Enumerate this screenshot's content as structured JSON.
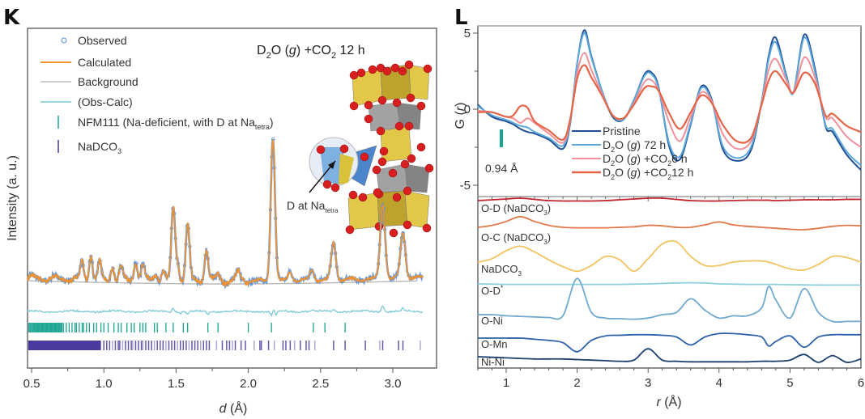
{
  "panels": {
    "k": {
      "letter": "K"
    },
    "l": {
      "letter": "L"
    }
  },
  "chart_data": [
    {
      "id": "K",
      "type": "line",
      "title": "D2O (g) +CO2 12 h",
      "title_parts": {
        "a": "D",
        "sub1": "2",
        "b": "O (",
        "g": "g",
        "c": ") +CO",
        "sub2": "2",
        "d": " 12 h"
      },
      "xlabel": "d (Å)",
      "xlabel_parts": {
        "var": "d",
        "unit": " (Å)"
      },
      "ylabel": "Intensity (a. u.)",
      "xlim": [
        0.47,
        3.22
      ],
      "xticks": [
        "0.5",
        "1.0",
        "1.5",
        "2.0",
        "2.5",
        "3.0"
      ],
      "xtick_values": [
        0.5,
        1.0,
        1.5,
        2.0,
        2.5,
        3.0
      ],
      "grid": false,
      "legend": {
        "placement": "top-left",
        "entries": [
          {
            "label": "Observed",
            "marker": "circle",
            "color": "#5b8fd6"
          },
          {
            "label": "Calculated",
            "marker": "line",
            "color": "#f0922e"
          },
          {
            "label": "Background",
            "marker": "line",
            "color": "#b8b8b8"
          },
          {
            "label": "(Obs-Calc)",
            "marker": "line",
            "color": "#7cc9d6"
          },
          {
            "label": "NFM111 (Na-deficient, with D at Na",
            "sub": "tetra",
            "suffix": ")",
            "marker": "tick",
            "color": "#1aa391"
          },
          {
            "label": "NaDCO",
            "sub": "3",
            "suffix": "",
            "marker": "tick",
            "color": "#4b3a9c"
          }
        ]
      },
      "annotation": {
        "text": "D at Na",
        "sub": "tetra"
      },
      "peaks": [
        {
          "d": 0.85,
          "height": 0.12
        },
        {
          "d": 0.91,
          "height": 0.18
        },
        {
          "d": 0.97,
          "height": 0.12
        },
        {
          "d": 1.06,
          "height": 0.1
        },
        {
          "d": 1.12,
          "height": 0.09
        },
        {
          "d": 1.22,
          "height": 0.13
        },
        {
          "d": 1.27,
          "height": 0.11
        },
        {
          "d": 1.36,
          "height": 0.05
        },
        {
          "d": 1.41,
          "height": 0.07
        },
        {
          "d": 1.48,
          "height": 0.5
        },
        {
          "d": 1.51,
          "height": 0.12
        },
        {
          "d": 1.58,
          "height": 0.4
        },
        {
          "d": 1.71,
          "height": 0.22
        },
        {
          "d": 1.79,
          "height": 0.04
        },
        {
          "d": 1.93,
          "height": 0.06
        },
        {
          "d": 2.17,
          "height": 1.0
        },
        {
          "d": 2.29,
          "height": 0.06
        },
        {
          "d": 2.44,
          "height": 0.07
        },
        {
          "d": 2.59,
          "height": 0.26
        },
        {
          "d": 2.93,
          "height": 0.52
        },
        {
          "d": 3.07,
          "height": 0.32
        }
      ],
      "reflections": {
        "NFM111": [
          0.52,
          0.54,
          0.55,
          0.57,
          0.58,
          0.6,
          0.61,
          0.63,
          0.64,
          0.66,
          0.67,
          0.69,
          0.71,
          0.72,
          0.74,
          0.76,
          0.78,
          0.8,
          0.81,
          0.83,
          0.85,
          0.86,
          0.88,
          0.9,
          0.93,
          0.95,
          0.98,
          1.0,
          1.03,
          1.07,
          1.1,
          1.12,
          1.16,
          1.19,
          1.21,
          1.25,
          1.27,
          1.29,
          1.35,
          1.37,
          1.43,
          1.48,
          1.55,
          1.58,
          1.72,
          1.79,
          2.0,
          2.16,
          2.45,
          2.53,
          2.67
        ],
        "NaDCO3_dense_until": 0.98,
        "NaDCO3": [
          1.0,
          1.02,
          1.04,
          1.06,
          1.08,
          1.1,
          1.11,
          1.13,
          1.15,
          1.17,
          1.19,
          1.2,
          1.22,
          1.24,
          1.26,
          1.27,
          1.29,
          1.31,
          1.33,
          1.35,
          1.37,
          1.39,
          1.41,
          1.43,
          1.45,
          1.47,
          1.49,
          1.51,
          1.53,
          1.55,
          1.57,
          1.59,
          1.61,
          1.63,
          1.65,
          1.67,
          1.69,
          1.71,
          1.73,
          1.78,
          1.82,
          1.85,
          1.87,
          1.89,
          1.91,
          1.95,
          1.98,
          2.04,
          2.08,
          2.09,
          2.14,
          2.18,
          2.24,
          2.26,
          2.29,
          2.32,
          2.36,
          2.4,
          2.42,
          2.46,
          2.59,
          2.67,
          2.81,
          2.91,
          2.93,
          3.04,
          3.07,
          3.19
        ]
      },
      "series_colors": {
        "observed": "#5b8fd6",
        "calculated": "#f0922e",
        "background": "#b8b8b8",
        "difference": "#7cc9d6",
        "nfm111_ticks": "#1aa391",
        "nadco3_ticks": "#4b3a9c"
      }
    },
    {
      "id": "L-top",
      "type": "line",
      "xlabel": "r (Å)",
      "ylabel": "G (r)",
      "xlim": [
        0.6,
        6.0
      ],
      "ylim": [
        -5,
        5
      ],
      "yticks": [
        "5",
        "0",
        "-5"
      ],
      "ytick_values": [
        5,
        0,
        -5
      ],
      "grid": false,
      "legend": {
        "placement": "bottom-center"
      },
      "scale_bar": {
        "label": "0.94 Å",
        "color": "#1aa391"
      },
      "x": [
        0.6,
        0.8,
        1.0,
        1.1,
        1.2,
        1.3,
        1.4,
        1.6,
        1.8,
        1.9,
        2.0,
        2.1,
        2.2,
        2.35,
        2.5,
        2.65,
        2.8,
        2.95,
        3.05,
        3.15,
        3.3,
        3.45,
        3.6,
        3.75,
        3.9,
        4.05,
        4.25,
        4.45,
        4.6,
        4.7,
        4.8,
        4.95,
        5.05,
        5.2,
        5.35,
        5.5,
        5.6,
        5.8,
        6.0
      ],
      "series": [
        {
          "name": "Pristine",
          "label_parts": {
            "a": "Pristine"
          },
          "color": "#1f4e96",
          "values": [
            0.3,
            -0.5,
            -0.8,
            -1.0,
            -1.3,
            -1.5,
            -1.6,
            -2.0,
            -2.6,
            -1.0,
            3.0,
            5.2,
            3.5,
            1.2,
            -0.5,
            -0.7,
            0.6,
            2.3,
            2.4,
            1.4,
            -2.5,
            -3.3,
            -1.0,
            1.5,
            0.6,
            -2.6,
            -3.4,
            -2.7,
            0.5,
            3.5,
            4.7,
            2.2,
            1.1,
            4.9,
            2.7,
            -1.1,
            -1.5,
            -3.0,
            -4.0
          ]
        },
        {
          "name": "D2O (g) 72 h",
          "label_parts": {
            "a": "D",
            "sub": "2",
            "b": "O (",
            "g": "g",
            "c": ") 72 h"
          },
          "color": "#5ba8d8",
          "values": [
            0.2,
            -0.4,
            -0.7,
            -0.9,
            -1.1,
            -1.2,
            -1.5,
            -1.9,
            -2.4,
            -0.9,
            3.0,
            5.0,
            3.4,
            1.2,
            -0.4,
            -0.7,
            0.6,
            2.2,
            2.3,
            1.3,
            -2.3,
            -3.1,
            -0.9,
            1.4,
            0.5,
            -2.4,
            -3.2,
            -2.5,
            0.5,
            3.3,
            4.4,
            2.1,
            1.1,
            4.7,
            2.5,
            -1.0,
            -1.3,
            -2.8,
            -3.7
          ]
        },
        {
          "name": "D2O (g) +CO2 6 h",
          "label_parts": {
            "a": "D",
            "sub": "2",
            "b": "O (",
            "g": "g",
            "c": ") +CO",
            "sub2": "2",
            "d": "6 h"
          },
          "color": "#f0909a",
          "values": [
            -0.1,
            -0.2,
            -0.5,
            -0.6,
            -0.9,
            -0.6,
            -0.9,
            -1.6,
            -2.2,
            -0.8,
            2.4,
            3.7,
            2.6,
            1.0,
            -0.4,
            -0.6,
            0.4,
            1.8,
            1.9,
            1.2,
            -0.9,
            -2.1,
            -0.5,
            1.1,
            0.5,
            -1.6,
            -2.6,
            -2.1,
            0.4,
            2.6,
            3.3,
            1.9,
            1.1,
            3.4,
            2.1,
            -0.5,
            -0.6,
            -1.8,
            -2.5
          ]
        },
        {
          "name": "D2O (g) +CO2 12 h",
          "label_parts": {
            "a": "D",
            "sub": "2",
            "b": "O (",
            "g": "g",
            "c": ") +CO",
            "sub2": "2",
            "d": "12 h"
          },
          "color": "#e56548",
          "values": [
            -0.2,
            -0.2,
            -0.5,
            -0.4,
            0.2,
            0.1,
            -0.8,
            -1.4,
            -2.0,
            -0.7,
            2.0,
            2.9,
            2.1,
            0.9,
            -0.4,
            -0.6,
            0.3,
            1.4,
            1.5,
            1.2,
            -0.3,
            -1.3,
            -0.2,
            0.9,
            0.4,
            -1.0,
            -2.1,
            -1.9,
            0.3,
            1.9,
            2.5,
            1.6,
            1.1,
            2.4,
            1.7,
            -0.4,
            -0.3,
            -1.1,
            -1.5
          ]
        }
      ]
    },
    {
      "id": "L-bottom",
      "type": "line",
      "xlabel": "r (Å)",
      "xlabel_parts": {
        "var": "r",
        "unit": " (Å)"
      },
      "xlim": [
        0.6,
        6.0
      ],
      "xticks": [
        "1",
        "2",
        "3",
        "4",
        "5",
        "6"
      ],
      "xtick_values": [
        1,
        2,
        3,
        4,
        5,
        6
      ],
      "grid": false,
      "x": [
        0.6,
        0.8,
        1.0,
        1.2,
        1.4,
        1.6,
        1.8,
        2.0,
        2.2,
        2.4,
        2.6,
        2.8,
        3.0,
        3.2,
        3.4,
        3.6,
        3.8,
        4.0,
        4.2,
        4.4,
        4.6,
        4.7,
        4.8,
        5.0,
        5.2,
        5.4,
        5.6,
        5.8,
        6.0
      ],
      "series": [
        {
          "name": "O-D (NaDCO3)",
          "label_parts": {
            "a": "O-D (NaDCO",
            "sub": "3",
            "b": ")"
          },
          "color": "#c0262b",
          "values": [
            0.0,
            0.1,
            0.2,
            0.3,
            0.15,
            0.0,
            -0.05,
            -0.05,
            -0.05,
            0.0,
            0.1,
            0.2,
            0.3,
            0.3,
            0.15,
            0.0,
            -0.05,
            -0.05,
            0.0,
            0.05,
            0.05,
            0.05,
            0.0,
            0.05,
            0.1,
            0.1,
            0.1,
            0.15,
            0.15
          ]
        },
        {
          "name": "O-C (NaDCO3)",
          "label_parts": {
            "a": "O-C (NaDCO",
            "sub": "3",
            "b": ")"
          },
          "color": "#e0784a",
          "values": [
            0.0,
            0.2,
            0.6,
            1.1,
            0.6,
            0.2,
            0.0,
            -0.05,
            -0.05,
            -0.05,
            0.0,
            0.05,
            0.2,
            0.15,
            0.0,
            0.0,
            0.25,
            0.55,
            0.25,
            0.1,
            0.0,
            -0.05,
            -0.1,
            -0.2,
            -0.25,
            -0.1,
            0.1,
            0.2,
            0.15
          ]
        },
        {
          "name": "NaDCO3",
          "label_parts": {
            "a": "NaDCO",
            "sub": "3"
          },
          "color": "#f2c461",
          "values": [
            0.0,
            0.3,
            1.0,
            1.4,
            0.9,
            0.2,
            -0.4,
            -0.8,
            -0.3,
            0.5,
            0.2,
            -0.8,
            0.3,
            1.6,
            1.8,
            0.5,
            -0.3,
            -0.3,
            0.0,
            0.1,
            0.1,
            0.0,
            -0.2,
            -0.6,
            -0.7,
            -0.2,
            0.5,
            0.4,
            0.0
          ]
        },
        {
          "name": "O-D*",
          "label_parts": {
            "a": "O-D",
            "sup": "*"
          },
          "color": "#8cd0e0",
          "values": [
            0.0,
            -0.02,
            -0.05,
            -0.05,
            -0.05,
            -0.05,
            -0.05,
            -0.05,
            -0.05,
            -0.05,
            -0.05,
            -0.02,
            0.0,
            0.05,
            0.1,
            0.12,
            0.1,
            0.0,
            -0.02,
            -0.05,
            -0.05,
            -0.05,
            -0.05,
            -0.08,
            -0.1,
            -0.12,
            -0.12,
            -0.12,
            -0.12
          ]
        },
        {
          "name": "O-Ni",
          "label_parts": {
            "a": "O-Ni"
          },
          "color": "#6fa9cf",
          "values": [
            0.0,
            0.0,
            -0.1,
            -0.15,
            -0.2,
            -0.25,
            -0.1,
            3.2,
            0.2,
            -0.3,
            -0.35,
            -0.4,
            -0.3,
            0.0,
            0.2,
            1.4,
            0.4,
            -0.3,
            -0.1,
            -0.1,
            0.6,
            2.5,
            1.3,
            -0.3,
            2.3,
            0.2,
            -0.6,
            -0.6,
            -0.6
          ]
        },
        {
          "name": "O-Mn",
          "label_parts": {
            "a": "O-Mn"
          },
          "color": "#2e62a8",
          "values": [
            0.0,
            0.0,
            0.0,
            0.0,
            -0.1,
            -0.2,
            -0.4,
            -1.2,
            -0.2,
            0.2,
            0.25,
            0.3,
            0.3,
            0.25,
            0.1,
            -0.6,
            0.1,
            0.4,
            0.4,
            0.3,
            0.1,
            -0.7,
            -0.3,
            0.2,
            -0.8,
            0.1,
            0.3,
            0.3,
            0.3
          ]
        },
        {
          "name": "Ni-Ni",
          "label_parts": {
            "a": "Ni-Ni"
          },
          "color": "#1b3f6e",
          "values": [
            0.0,
            -0.05,
            -0.1,
            -0.15,
            -0.2,
            -0.2,
            -0.2,
            -0.25,
            -0.3,
            -0.35,
            -0.4,
            -0.3,
            0.7,
            -0.3,
            -0.4,
            -0.45,
            -0.45,
            -0.45,
            -0.45,
            -0.45,
            -0.4,
            -0.4,
            -0.4,
            -0.3,
            0.2,
            -0.5,
            0.1,
            -0.5,
            -0.2
          ]
        }
      ]
    }
  ]
}
